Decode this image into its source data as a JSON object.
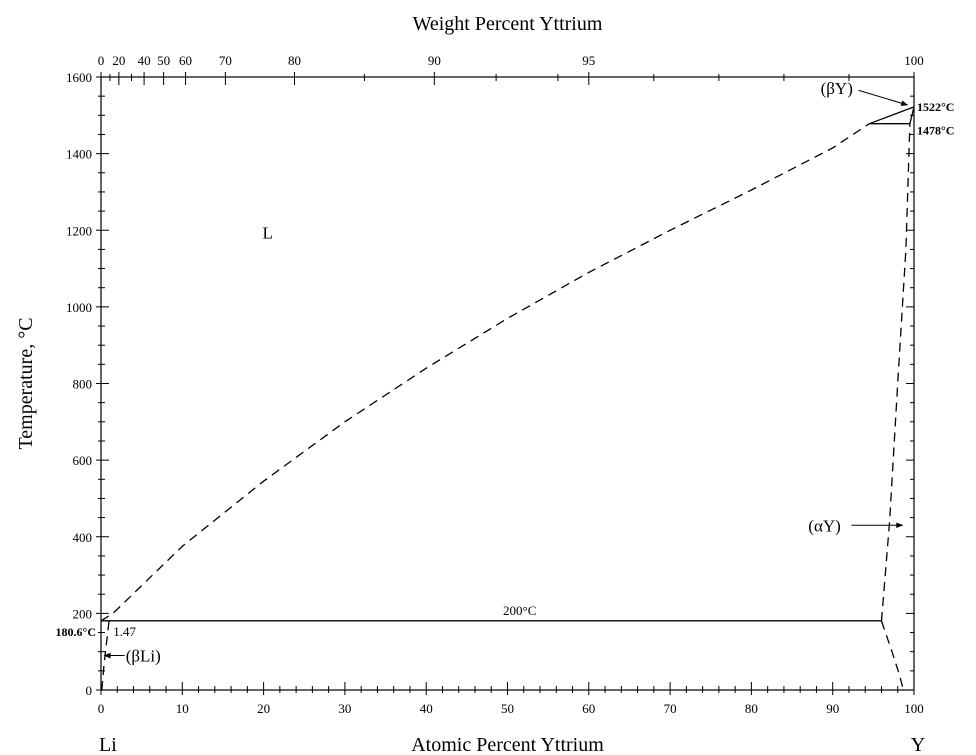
{
  "chart_data": {
    "type": "phase-diagram",
    "title": "Weight Percent Yttrium",
    "xlabel": "Atomic Percent Yttrium",
    "ylabel": "Temperature, °C",
    "xlim": [
      0,
      100
    ],
    "ylim": [
      0,
      1600
    ],
    "x_ticks": [
      "0",
      "10",
      "20",
      "30",
      "40",
      "50",
      "60",
      "70",
      "80",
      "90",
      "100"
    ],
    "y_ticks": [
      "0",
      "200",
      "400",
      "600",
      "800",
      "1000",
      "1200",
      "1400",
      "1600"
    ],
    "top_axis": {
      "label": "Weight Percent Yttrium",
      "ticks": [
        {
          "label": "0",
          "at_pct": 0
        },
        {
          "label": "20",
          "at_pct": 2.2
        },
        {
          "label": "40",
          "at_pct": 5.3
        },
        {
          "label": "50",
          "at_pct": 7.7
        },
        {
          "label": "60",
          "at_pct": 10.4
        },
        {
          "label": "70",
          "at_pct": 15.3
        },
        {
          "label": "80",
          "at_pct": 23.8
        },
        {
          "label": "90",
          "at_pct": 41.0
        },
        {
          "label": "95",
          "at_pct": 60.0
        },
        {
          "label": "100",
          "at_pct": 100
        }
      ]
    },
    "left_element": "Li",
    "right_element": "Y",
    "phase_labels": {
      "liquid": "L",
      "beta_y": "(βY)",
      "alpha_y": "(αY)",
      "beta_li": "(βLi)"
    },
    "annotations": {
      "t_melt_li": "180.6°C",
      "t_melt_y": "1522°C",
      "t_transform_y": "1478°C",
      "t_monotectic": "200°C",
      "li_solubility": "1.47"
    },
    "series": [
      {
        "name": "liquidus",
        "style": "dashed",
        "x": [
          0,
          1.47,
          10,
          20,
          30,
          40,
          50,
          60,
          70,
          80,
          90,
          94.5
        ],
        "y": [
          180.6,
          200,
          375,
          545,
          700,
          840,
          970,
          1090,
          1200,
          1305,
          1415,
          1478
        ]
      },
      {
        "name": "beta_y_liquidus",
        "style": "solid",
        "x": [
          94.5,
          100
        ],
        "y": [
          1478,
          1522
        ]
      },
      {
        "name": "transformation_line",
        "style": "solid",
        "x": [
          94.5,
          99.5
        ],
        "y": [
          1478,
          1478
        ]
      },
      {
        "name": "alpha_y_solvus",
        "style": "dashed",
        "x": [
          96.0,
          97.0,
          98.0,
          99.0,
          99.5
        ],
        "y": [
          180,
          440,
          800,
          1150,
          1478
        ]
      },
      {
        "name": "beta_y_boundary",
        "style": "solid",
        "x": [
          99.5,
          100
        ],
        "y": [
          1478,
          1522
        ]
      },
      {
        "name": "horizontal_200",
        "style": "solid",
        "x": [
          0,
          96.0
        ],
        "y": [
          180.6,
          180.6
        ]
      },
      {
        "name": "alpha_y_low",
        "style": "dashed",
        "x": [
          96.0,
          97.3,
          98.2,
          98.7
        ],
        "y": [
          180,
          100,
          40,
          0
        ]
      },
      {
        "name": "beta_li_solvus",
        "style": "dashed",
        "x": [
          0.1,
          0.35,
          0.6,
          1.0
        ],
        "y": [
          0,
          60,
          110,
          180.6
        ]
      }
    ]
  }
}
